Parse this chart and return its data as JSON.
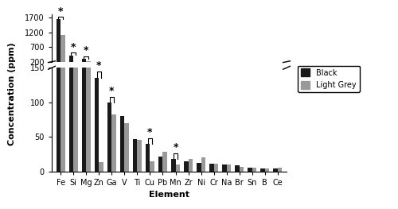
{
  "elements": [
    "Fe",
    "Si",
    "Mg",
    "Zn",
    "Ga",
    "V",
    "Ti",
    "Cu",
    "Pb",
    "Mn",
    "Zr",
    "Ni",
    "Cr",
    "Na",
    "Br",
    "Sn",
    "B",
    "Ce"
  ],
  "black": [
    1650,
    420,
    300,
    135,
    100,
    80,
    47,
    40,
    22,
    18,
    15,
    12,
    11,
    10,
    9,
    5,
    4,
    4
  ],
  "grey": [
    1100,
    175,
    210,
    13,
    83,
    70,
    46,
    15,
    28,
    10,
    18,
    20,
    11,
    10,
    7,
    5,
    4,
    5
  ],
  "black_color": "#1a1a1a",
  "grey_color": "#999999",
  "upper_ylim": [
    200,
    1800
  ],
  "lower_ylim": [
    0,
    150
  ],
  "upper_yticks": [
    200,
    700,
    1200,
    1700
  ],
  "lower_yticks": [
    0,
    50,
    100,
    150
  ],
  "asterisk_elements": [
    "Fe",
    "Si",
    "Mg",
    "Zn",
    "Ga",
    "Cu",
    "Mn"
  ],
  "xlabel": "Element",
  "ylabel": "Concentration (ppm)",
  "legend_labels": [
    "Black",
    "Light Grey"
  ]
}
